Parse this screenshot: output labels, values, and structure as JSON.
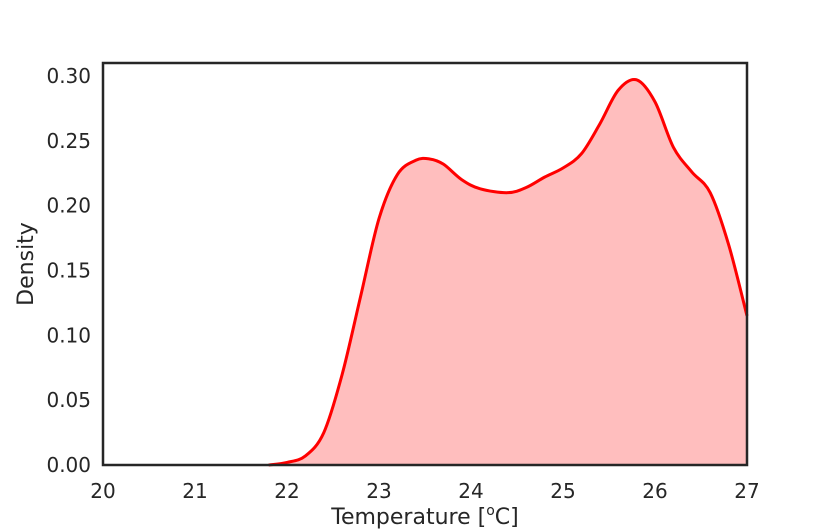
{
  "chart_data": {
    "type": "area",
    "title": "",
    "xlabel_prefix": "Temperature [",
    "xlabel_sup": "o",
    "xlabel_suffix": "C]",
    "ylabel": "Density",
    "xlim": [
      20,
      27
    ],
    "ylim": [
      0,
      0.31
    ],
    "xticks": [
      "20",
      "21",
      "22",
      "23",
      "24",
      "25",
      "26",
      "27"
    ],
    "yticks": [
      "0.00",
      "0.05",
      "0.10",
      "0.15",
      "0.20",
      "0.25",
      "0.30"
    ],
    "grid": false,
    "legend": "none",
    "series": [
      {
        "line_color": "#ff0000",
        "fill_color": "#ffbebe",
        "x": [
          21.8,
          22.0,
          22.2,
          22.4,
          22.6,
          22.8,
          23.0,
          23.2,
          23.4,
          23.55,
          23.7,
          23.9,
          24.1,
          24.4,
          24.6,
          24.8,
          25.0,
          25.2,
          25.4,
          25.6,
          25.8,
          26.0,
          26.2,
          26.4,
          26.6,
          26.8,
          27.0
        ],
        "y": [
          0.0,
          0.002,
          0.007,
          0.025,
          0.07,
          0.13,
          0.19,
          0.224,
          0.235,
          0.236,
          0.232,
          0.22,
          0.213,
          0.21,
          0.214,
          0.222,
          0.229,
          0.24,
          0.263,
          0.289,
          0.297,
          0.28,
          0.245,
          0.226,
          0.21,
          0.17,
          0.115
        ]
      }
    ]
  }
}
